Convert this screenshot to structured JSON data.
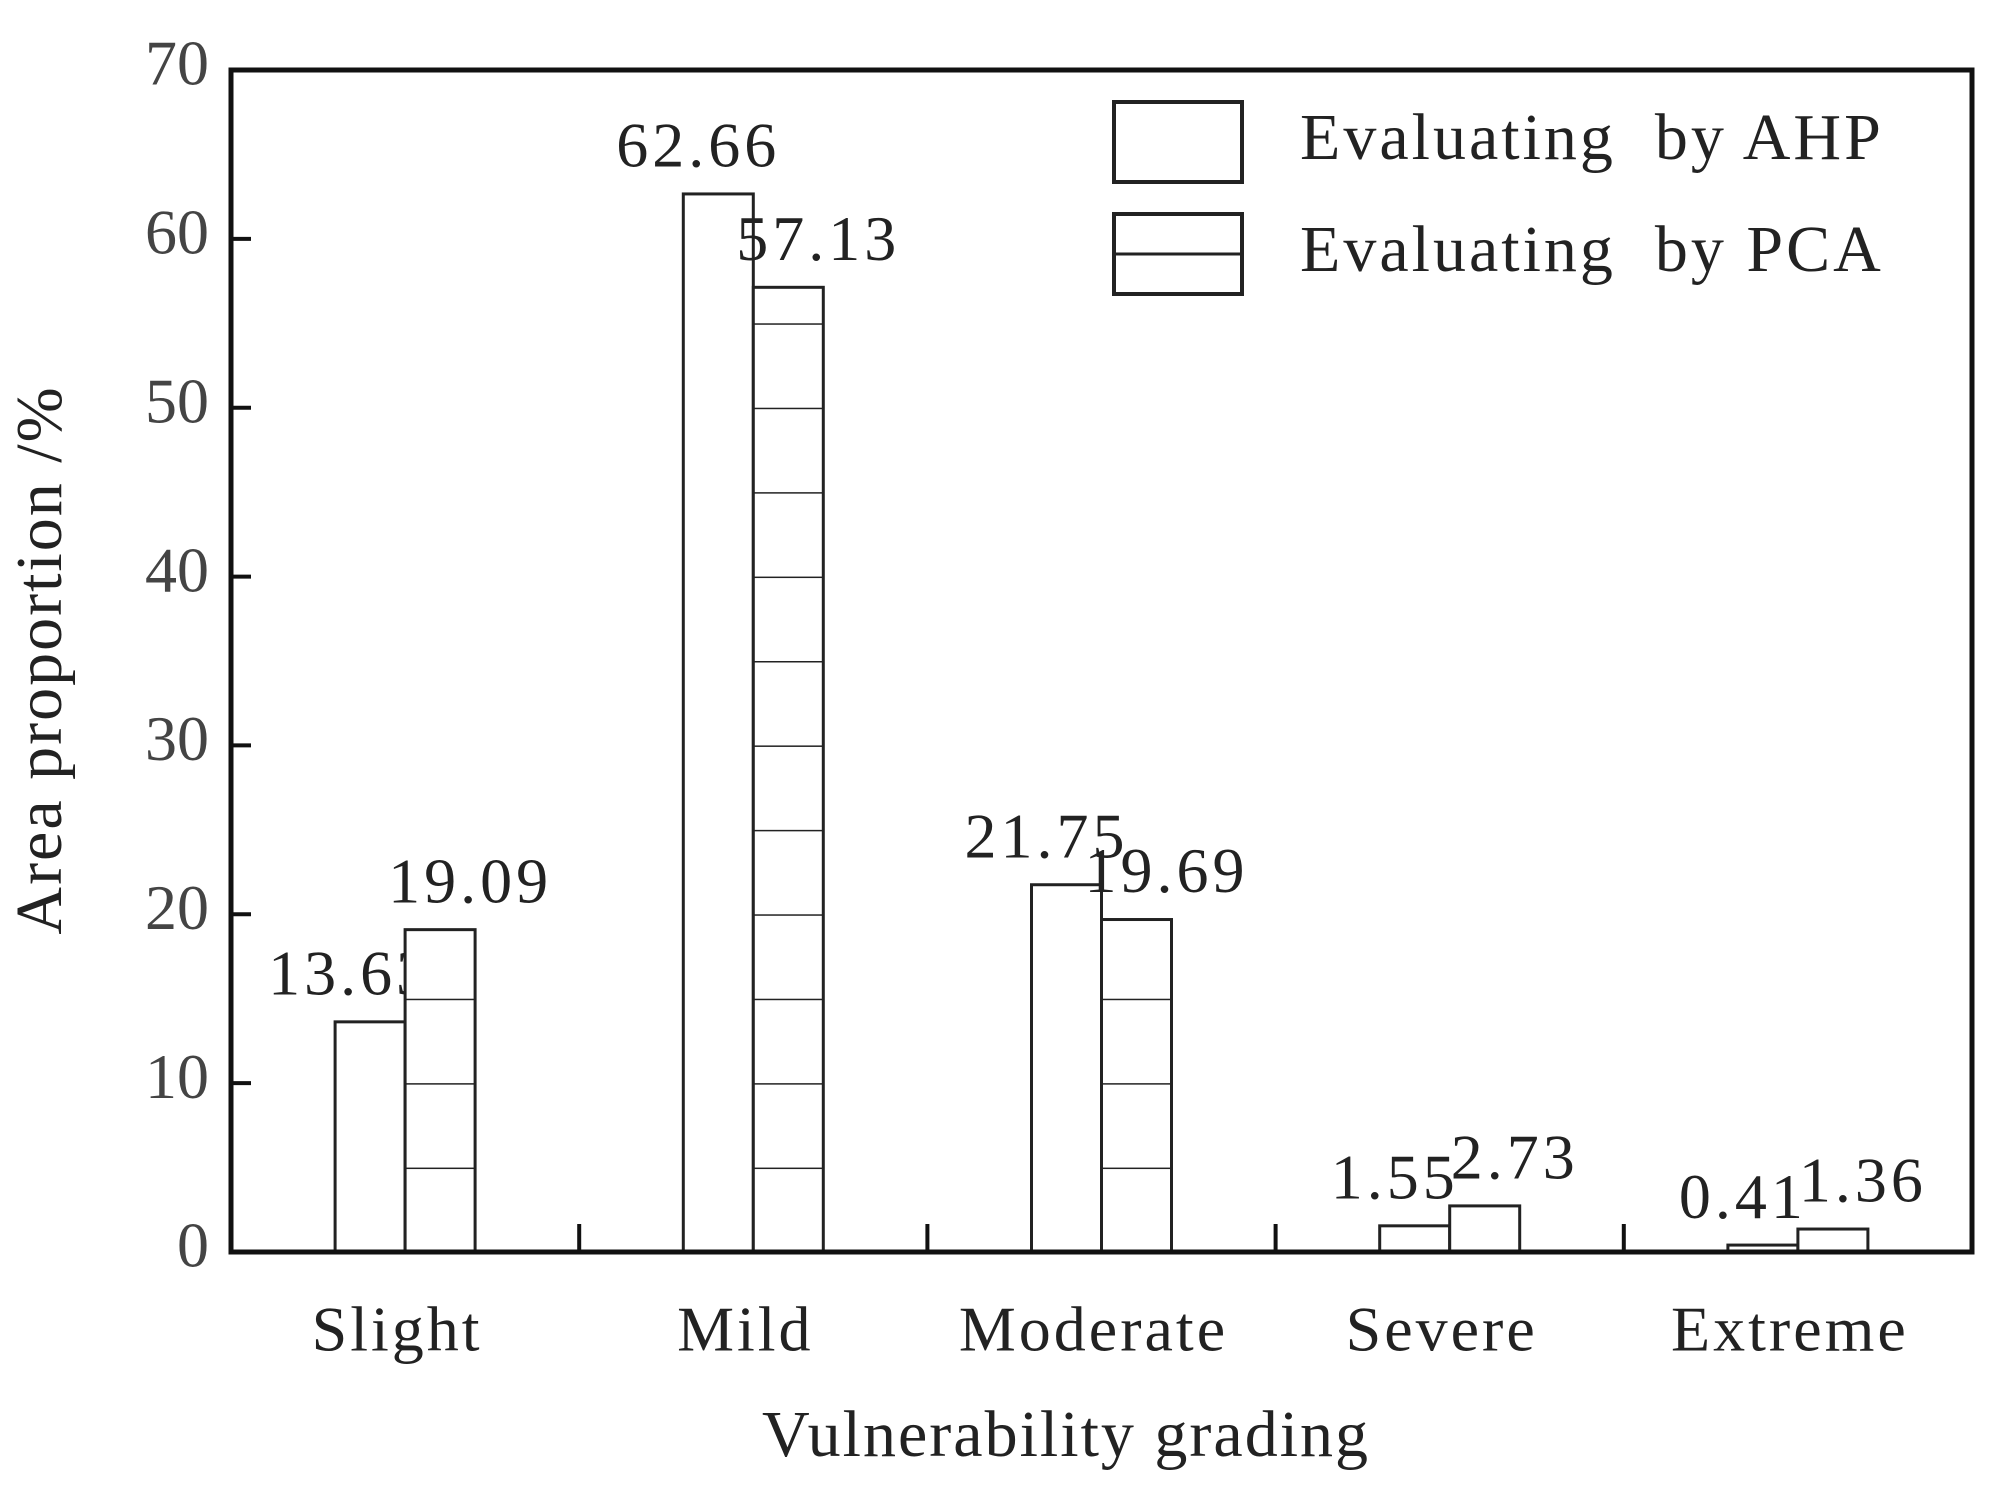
{
  "chart_data": {
    "type": "bar",
    "x_label": "Vulnerability grading",
    "y_label": "Area proportion /%",
    "categories": [
      "Slight",
      "Mild",
      "Moderate",
      "Severe",
      "Extreme"
    ],
    "series": [
      {
        "name": "Evaluating  by AHP",
        "color": "#ffffff",
        "pattern": "none",
        "values": [
          13.63,
          62.66,
          21.75,
          1.55,
          0.41
        ]
      },
      {
        "name": "Evaluating  by PCA",
        "color": "#ffffff",
        "pattern": "horizontal-lines",
        "values": [
          19.09,
          57.13,
          19.69,
          2.73,
          1.36
        ]
      }
    ],
    "ylim": [
      0,
      70
    ],
    "yticks": [
      0,
      10,
      20,
      30,
      40,
      50,
      60,
      70
    ],
    "grid": false,
    "legend": "upper right"
  }
}
